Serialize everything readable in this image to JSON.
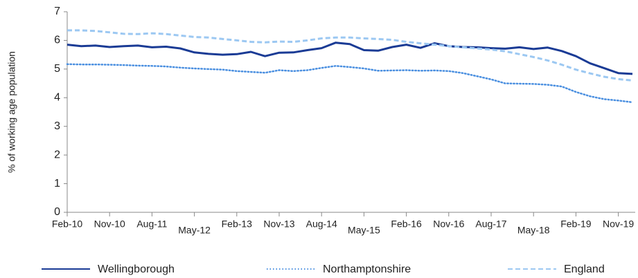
{
  "chart_data": {
    "type": "line",
    "y_label": "% of working age population",
    "categories": [
      "Feb-10",
      null,
      null,
      "Nov-10",
      null,
      null,
      "Aug-11",
      null,
      null,
      "May-12",
      null,
      null,
      "Feb-13",
      null,
      null,
      "Nov-13",
      null,
      null,
      "Aug-14",
      null,
      null,
      "May-15",
      null,
      null,
      "Feb-16",
      null,
      null,
      "Nov-16",
      null,
      null,
      "Aug-17",
      null,
      null,
      "May-18",
      null,
      null,
      "Feb-19",
      null,
      null,
      "Nov-19",
      null
    ],
    "ylim": [
      0,
      7
    ],
    "yticks": [
      0,
      1,
      2,
      3,
      4,
      5,
      6,
      7
    ],
    "grid": false,
    "legend": "bottom",
    "series": [
      {
        "name": "Wellingborough",
        "color": "#1a3b95",
        "style": "solid",
        "values": [
          5.85,
          5.8,
          5.82,
          5.77,
          5.8,
          5.82,
          5.76,
          5.78,
          5.72,
          5.58,
          5.53,
          5.5,
          5.52,
          5.6,
          5.45,
          5.57,
          5.58,
          5.66,
          5.73,
          5.92,
          5.87,
          5.66,
          5.64,
          5.77,
          5.85,
          5.74,
          5.9,
          5.8,
          5.77,
          5.76,
          5.73,
          5.71,
          5.76,
          5.7,
          5.75,
          5.63,
          5.45,
          5.2,
          5.03,
          4.86,
          4.83
        ]
      },
      {
        "name": "Northamptonshire",
        "color": "#4a8fe0",
        "style": "dotted",
        "values": [
          5.17,
          5.16,
          5.16,
          5.15,
          5.14,
          5.12,
          5.11,
          5.09,
          5.05,
          5.02,
          5.0,
          4.98,
          4.93,
          4.9,
          4.87,
          4.96,
          4.93,
          4.96,
          5.04,
          5.11,
          5.07,
          5.02,
          4.94,
          4.95,
          4.96,
          4.94,
          4.95,
          4.93,
          4.86,
          4.75,
          4.64,
          4.5,
          4.49,
          4.48,
          4.45,
          4.39,
          4.2,
          4.05,
          3.95,
          3.9,
          3.84
        ]
      },
      {
        "name": "England",
        "color": "#9cc8f2",
        "style": "dashed",
        "values": [
          6.35,
          6.35,
          6.33,
          6.28,
          6.23,
          6.22,
          6.25,
          6.22,
          6.17,
          6.12,
          6.1,
          6.05,
          6.0,
          5.95,
          5.93,
          5.96,
          5.95,
          6.0,
          6.07,
          6.1,
          6.1,
          6.07,
          6.05,
          6.02,
          5.95,
          5.9,
          5.85,
          5.8,
          5.76,
          5.72,
          5.68,
          5.62,
          5.52,
          5.42,
          5.3,
          5.15,
          4.98,
          4.85,
          4.73,
          4.65,
          4.6
        ]
      }
    ]
  }
}
